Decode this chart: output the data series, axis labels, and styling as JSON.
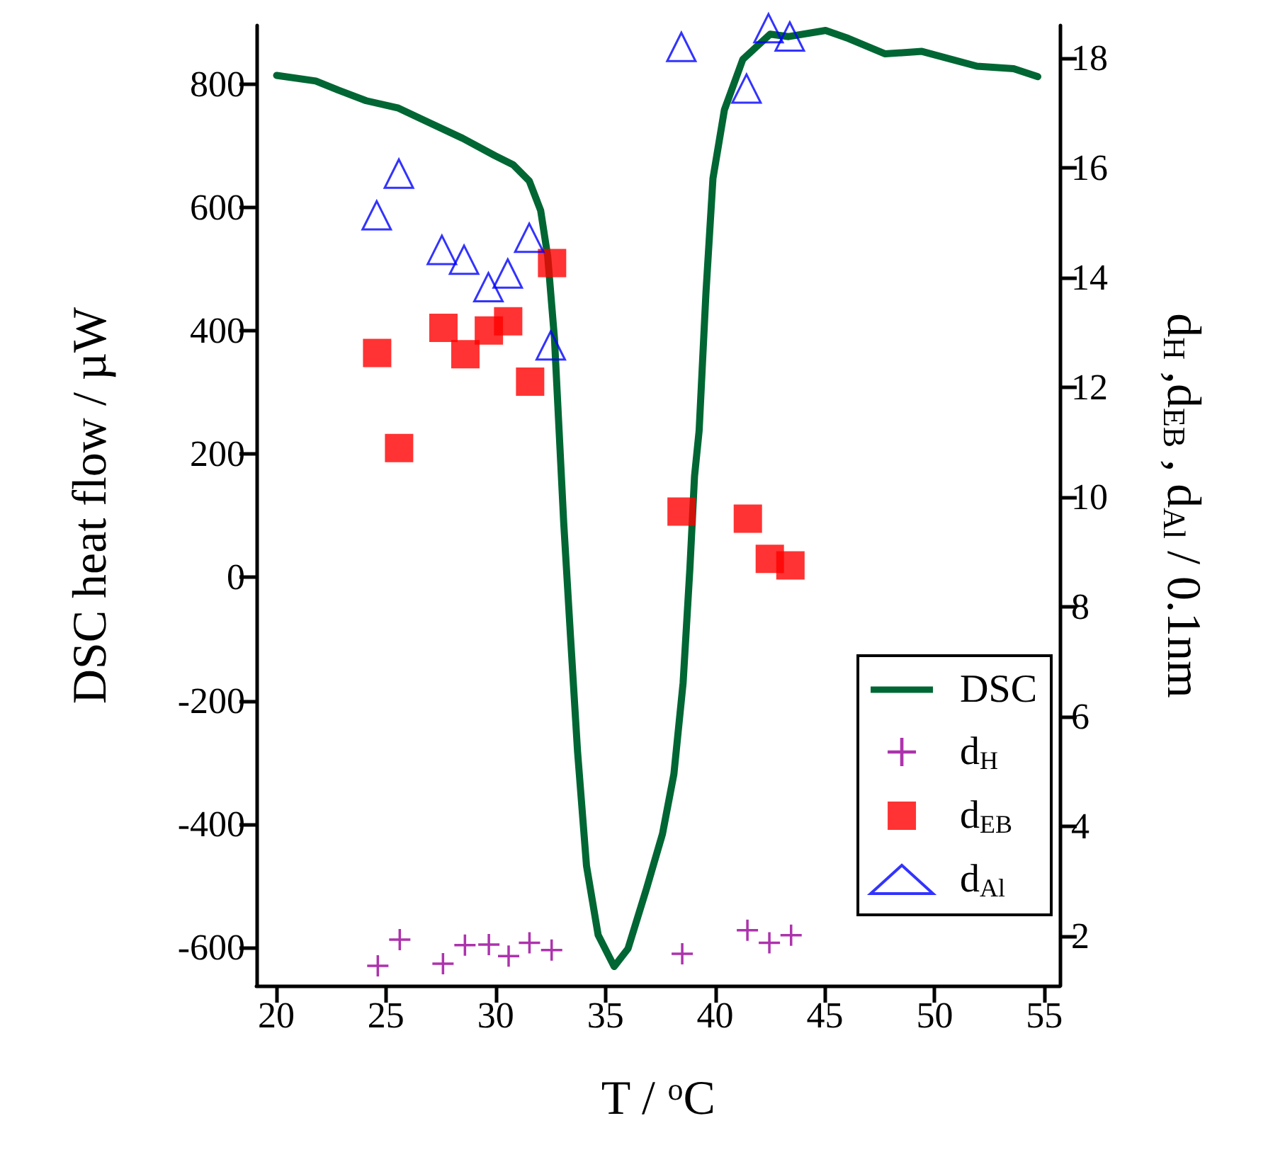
{
  "chart_data": {
    "type": "line",
    "xlabel": "T / $^{o}$C",
    "ylabel": "DSC heat flow / µW",
    "y2label": "d$_{H}$ ,d$_{EB}$ , d$_{Al}$ / 0.1nm",
    "xlim": [
      19.1,
      55.7
    ],
    "xticks": [
      20,
      25,
      30,
      35,
      40,
      45,
      50,
      55
    ],
    "ylim": [
      -662,
      895
    ],
    "yticks": [
      -600,
      -400,
      -200,
      0,
      200,
      400,
      600,
      800
    ],
    "y2lim": [
      1.1,
      18.6
    ],
    "y2ticks": [
      2,
      4,
      6,
      8,
      10,
      12,
      14,
      16,
      18
    ],
    "grid": false,
    "legend": "bottom right",
    "series": [
      {
        "name": "DSC",
        "type": "line",
        "color": "#006633",
        "marker": "none",
        "line_style": "solid",
        "x": [
          20.02,
          21.8,
          22.84,
          24.1,
          25.57,
          26.82,
          28.5,
          29.96,
          30.8,
          31.53,
          32.05,
          32.37,
          32.68,
          32.89,
          33.1,
          33.41,
          33.73,
          34.14,
          34.67,
          35.4,
          36.03,
          36.87,
          37.6,
          38.12,
          38.54,
          38.85,
          39.06,
          39.27,
          39.58,
          39.9,
          40.42,
          41.26,
          42.51,
          43.35,
          45.03,
          46.07,
          47.75,
          49.42,
          51.93,
          53.6,
          54.7
        ],
        "values": [
          814,
          805,
          790,
          773,
          761,
          740,
          712,
          684,
          669,
          643,
          595,
          521,
          387,
          238,
          89,
          -96,
          -282,
          -468,
          -580,
          -631,
          -602,
          -505,
          -416,
          -319,
          -171,
          15,
          164,
          238,
          461,
          647,
          758,
          840,
          881,
          877,
          887,
          874,
          849,
          853,
          829,
          825,
          812
        ]
      },
      {
        "name": "d$_{H}$",
        "type": "scatter",
        "axis": "y2",
        "color": "#990099",
        "marker": "cross",
        "x": [
          24.63,
          25.63,
          27.6,
          28.6,
          29.69,
          30.59,
          31.54,
          32.55,
          38.5,
          41.47,
          42.47,
          43.46
        ],
        "values": [
          1.46,
          1.94,
          1.5,
          1.84,
          1.85,
          1.64,
          1.88,
          1.75,
          1.68,
          2.11,
          1.88,
          2.02
        ]
      },
      {
        "name": "d$_{EB}$",
        "type": "scatter",
        "axis": "y2",
        "color": "#ff0000",
        "marker": "square",
        "x": [
          24.6,
          25.6,
          27.62,
          28.62,
          29.69,
          30.57,
          31.57,
          32.57,
          38.47,
          41.49,
          42.49,
          43.43
        ],
        "values": [
          12.63,
          10.9,
          13.09,
          12.61,
          13.04,
          13.21,
          12.11,
          14.27,
          9.74,
          9.61,
          8.88,
          8.76
        ]
      },
      {
        "name": "d$_{Al}$",
        "type": "scatter",
        "axis": "y2",
        "color": "#0000ff",
        "marker": "triangle",
        "x": [
          24.58,
          25.59,
          27.55,
          28.56,
          29.67,
          30.55,
          31.53,
          32.51,
          38.46,
          41.43,
          42.43,
          43.4
        ],
        "values": [
          15.14,
          15.9,
          14.51,
          14.33,
          13.83,
          14.08,
          14.73,
          12.77,
          18.21,
          17.45,
          18.55,
          18.4
        ]
      }
    ]
  }
}
